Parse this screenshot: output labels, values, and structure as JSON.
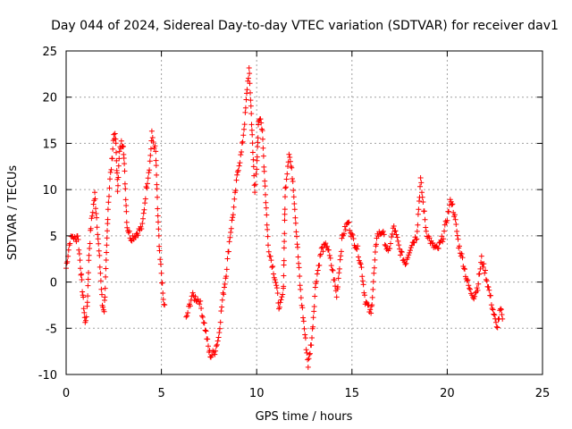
{
  "chart_data": {
    "type": "scatter",
    "title": "Day 044 of 2024, Sidereal Day-to-day VTEC variation (SDTVAR) for receiver dav1",
    "xlabel": "GPS time / hours",
    "ylabel": "SDTVAR / TECUs",
    "xlim": [
      0,
      25
    ],
    "ylim": [
      -10,
      25
    ],
    "xticks": [
      0,
      5,
      10,
      15,
      20,
      25
    ],
    "xtick_labels": [
      "0",
      "5",
      "10",
      "15",
      "20",
      "25"
    ],
    "yticks": [
      -10,
      -5,
      0,
      5,
      10,
      15,
      20,
      25
    ],
    "ytick_labels": [
      "-10",
      "-5",
      "0",
      "5",
      "10",
      "15",
      "20",
      "25"
    ],
    "grid": true,
    "marker": "+",
    "marker_color": "#ff0000",
    "series": [
      {
        "name": "SDTVAR",
        "color": "#ff0000",
        "trace": [
          [
            0.0,
            1.5
          ],
          [
            0.2,
            4.5
          ],
          [
            0.35,
            5.0
          ],
          [
            0.5,
            4.5
          ],
          [
            0.6,
            5.2
          ],
          [
            0.7,
            3.0
          ],
          [
            0.8,
            0.5
          ],
          [
            0.9,
            -2.0
          ],
          [
            1.0,
            -4.5
          ],
          [
            1.1,
            -3.0
          ],
          [
            1.2,
            3.0
          ],
          [
            1.3,
            6.0
          ],
          [
            1.5,
            9.5
          ],
          [
            1.6,
            7.0
          ],
          [
            1.8,
            1.0
          ],
          [
            1.9,
            -2.5
          ],
          [
            2.0,
            -3.0
          ],
          [
            2.1,
            2.0
          ],
          [
            2.2,
            8.0
          ],
          [
            2.3,
            11.0
          ],
          [
            2.4,
            13.0
          ],
          [
            2.5,
            16.0
          ],
          [
            2.6,
            15.5
          ],
          [
            2.7,
            10.0
          ],
          [
            2.8,
            14.0
          ],
          [
            2.9,
            15.0
          ],
          [
            3.0,
            15.0
          ],
          [
            3.2,
            6.0
          ],
          [
            3.4,
            4.8
          ],
          [
            3.6,
            5.0
          ],
          [
            4.0,
            6.0
          ],
          [
            4.2,
            10.0
          ],
          [
            4.4,
            13.0
          ],
          [
            4.5,
            16.0
          ],
          [
            4.7,
            14.0
          ],
          [
            4.8,
            8.0
          ],
          [
            4.9,
            3.0
          ],
          [
            5.0,
            1.0
          ],
          [
            5.1,
            -2.0
          ],
          [
            5.2,
            -3.0
          ],
          [
            6.3,
            -4.0
          ],
          [
            6.6,
            -1.5
          ],
          [
            7.0,
            -2.0
          ],
          [
            7.3,
            -5.0
          ],
          [
            7.5,
            -7.5
          ],
          [
            7.6,
            -8.0
          ],
          [
            7.8,
            -7.5
          ],
          [
            8.0,
            -6.0
          ],
          [
            8.2,
            -2.0
          ],
          [
            8.4,
            1.0
          ],
          [
            8.6,
            5.0
          ],
          [
            8.8,
            8.0
          ],
          [
            9.0,
            12.0
          ],
          [
            9.2,
            14.0
          ],
          [
            9.4,
            18.0
          ],
          [
            9.5,
            21.0
          ],
          [
            9.6,
            23.0
          ],
          [
            9.7,
            19.0
          ],
          [
            9.8,
            14.0
          ],
          [
            9.9,
            10.0
          ],
          [
            10.0,
            12.0
          ],
          [
            10.1,
            17.5
          ],
          [
            10.2,
            18.0
          ],
          [
            10.3,
            16.0
          ],
          [
            10.4,
            12.0
          ],
          [
            10.5,
            8.0
          ],
          [
            10.6,
            4.0
          ],
          [
            10.8,
            2.0
          ],
          [
            11.0,
            0.0
          ],
          [
            11.2,
            -3.0
          ],
          [
            11.4,
            -1.0
          ],
          [
            11.5,
            10.0
          ],
          [
            11.7,
            14.0
          ],
          [
            11.9,
            11.0
          ],
          [
            12.1,
            5.0
          ],
          [
            12.3,
            -1.0
          ],
          [
            12.5,
            -5.0
          ],
          [
            12.7,
            -9.0
          ],
          [
            12.9,
            -6.0
          ],
          [
            13.1,
            0.0
          ],
          [
            13.4,
            3.5
          ],
          [
            13.7,
            4.0
          ],
          [
            14.0,
            1.0
          ],
          [
            14.2,
            -1.5
          ],
          [
            14.5,
            5.0
          ],
          [
            14.8,
            6.5
          ],
          [
            15.0,
            5.0
          ],
          [
            15.3,
            3.5
          ],
          [
            15.5,
            1.5
          ],
          [
            15.7,
            -2.0
          ],
          [
            16.0,
            -3.5
          ],
          [
            16.3,
            5.0
          ],
          [
            16.6,
            5.5
          ],
          [
            16.9,
            3.0
          ],
          [
            17.2,
            6.0
          ],
          [
            17.5,
            3.5
          ],
          [
            17.8,
            2.0
          ],
          [
            18.1,
            4.0
          ],
          [
            18.4,
            5.0
          ],
          [
            18.6,
            11.0
          ],
          [
            18.9,
            5.5
          ],
          [
            19.2,
            4.0
          ],
          [
            19.5,
            3.5
          ],
          [
            19.8,
            5.0
          ],
          [
            20.0,
            7.0
          ],
          [
            20.2,
            9.0
          ],
          [
            20.4,
            7.0
          ],
          [
            20.6,
            4.0
          ],
          [
            20.8,
            2.5
          ],
          [
            21.0,
            0.5
          ],
          [
            21.2,
            -1.0
          ],
          [
            21.4,
            -1.5
          ],
          [
            21.6,
            -0.5
          ],
          [
            21.8,
            2.5
          ],
          [
            22.0,
            1.0
          ],
          [
            22.2,
            -1.0
          ],
          [
            22.4,
            -3.0
          ],
          [
            22.6,
            -5.0
          ],
          [
            22.8,
            -3.0
          ],
          [
            22.9,
            -4.0
          ]
        ]
      }
    ]
  }
}
